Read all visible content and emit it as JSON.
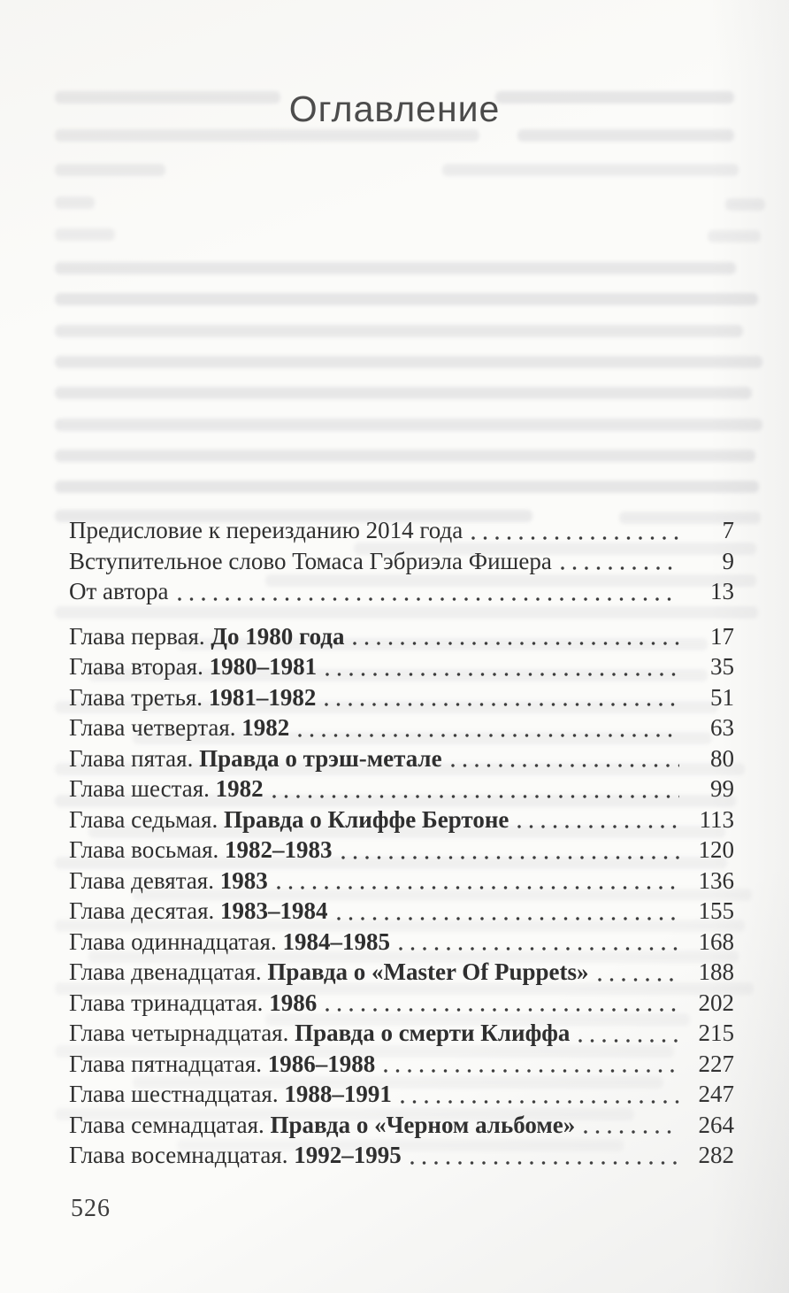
{
  "document": {
    "title": "Оглавление",
    "footer_page_number": "526",
    "toc": {
      "front_matter": [
        {
          "label": "Предисловие к переизданию 2014 года",
          "page": "7"
        },
        {
          "label": "Вступительное слово Томаса Гэбриэла Фишера",
          "page": "9"
        },
        {
          "label": "От автора",
          "page": "13"
        }
      ],
      "chapters": [
        {
          "prefix": "Глава первая.",
          "title": "До 1980 года",
          "page": "17"
        },
        {
          "prefix": "Глава вторая.",
          "title": "1980–1981",
          "page": "35"
        },
        {
          "prefix": "Глава третья.",
          "title": "1981–1982",
          "page": "51"
        },
        {
          "prefix": "Глава четвертая.",
          "title": "1982",
          "page": "63"
        },
        {
          "prefix": "Глава пятая.",
          "title": "Правда о трэш-метале",
          "page": "80"
        },
        {
          "prefix": "Глава шестая.",
          "title": "1982",
          "page": "99"
        },
        {
          "prefix": "Глава седьмая.",
          "title": "Правда о Клиффе Бертоне",
          "page": "113"
        },
        {
          "prefix": "Глава восьмая.",
          "title": "1982–1983",
          "page": "120"
        },
        {
          "prefix": "Глава девятая.",
          "title": "1983",
          "page": "136"
        },
        {
          "prefix": "Глава десятая.",
          "title": "1983–1984",
          "page": "155"
        },
        {
          "prefix": "Глава одиннадцатая.",
          "title": "1984–1985",
          "page": "168"
        },
        {
          "prefix": "Глава двенадцатая.",
          "title": "Правда о «Master Of Puppets»",
          "page": "188"
        },
        {
          "prefix": "Глава тринадцатая.",
          "title": "1986",
          "page": "202"
        },
        {
          "prefix": "Глава четырнадцатая.",
          "title": "Правда о смерти Клиффа",
          "page": "215"
        },
        {
          "prefix": "Глава пятнадцатая.",
          "title": "1986–1988",
          "page": "227"
        },
        {
          "prefix": "Глава шестнадцатая.",
          "title": "1988–1991",
          "page": "247"
        },
        {
          "prefix": "Глава семнадцатая.",
          "title": "Правда о «Черном альбоме»",
          "page": "264"
        },
        {
          "prefix": "Глава восемнадцатая.",
          "title": "1992–1995",
          "page": "282"
        }
      ]
    },
    "colors": {
      "text": "#2f2f2f",
      "title": "#484848",
      "dots": "#3d3d3d",
      "background": "#fbfbf9"
    }
  }
}
